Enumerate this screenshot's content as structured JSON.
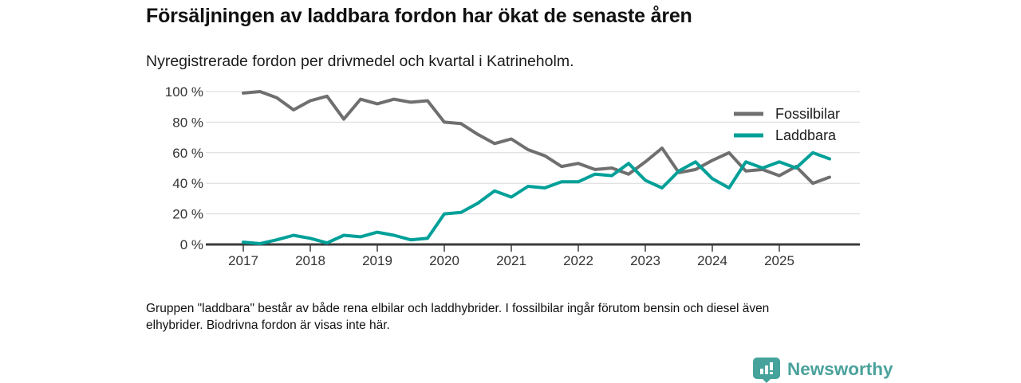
{
  "header": {
    "title": "Försäljningen av laddbara fordon har ökat de senaste åren",
    "subtitle": "Nyregistrerade fordon per drivmedel och kvartal i Katrineholm."
  },
  "chart_data": {
    "type": "line",
    "title": "Försäljningen av laddbara fordon har ökat de senaste åren",
    "subtitle": "Nyregistrerade fordon per drivmedel och kvartal i Katrineholm.",
    "x_unit": "quarter",
    "x": [
      "2017Q1",
      "2017Q2",
      "2017Q3",
      "2017Q4",
      "2018Q1",
      "2018Q2",
      "2018Q3",
      "2018Q4",
      "2019Q1",
      "2019Q2",
      "2019Q3",
      "2019Q4",
      "2020Q1",
      "2020Q2",
      "2020Q3",
      "2020Q4",
      "2021Q1",
      "2021Q2",
      "2021Q3",
      "2021Q4",
      "2022Q1",
      "2022Q2",
      "2022Q3",
      "2022Q4",
      "2023Q1",
      "2023Q2",
      "2023Q3",
      "2023Q4",
      "2024Q1",
      "2024Q2",
      "2024Q3",
      "2024Q4",
      "2025Q1",
      "2025Q2",
      "2025Q3",
      "2025Q4"
    ],
    "x_tick_labels": [
      "2017",
      "2018",
      "2019",
      "2020",
      "2021",
      "2022",
      "2023",
      "2024",
      "2025"
    ],
    "y_tick_labels": [
      "0 %",
      "20 %",
      "40 %",
      "60 %",
      "80 %",
      "100 %"
    ],
    "y_ticks": [
      0,
      20,
      40,
      60,
      80,
      100
    ],
    "ylim": [
      0,
      100
    ],
    "grid": "horizontal",
    "legend_position": "top-right",
    "series": [
      {
        "name": "Fossilbilar",
        "color": "#6f6f6f",
        "values": [
          99,
          100,
          96,
          88,
          94,
          97,
          82,
          95,
          92,
          95,
          93,
          94,
          80,
          79,
          72,
          66,
          69,
          62,
          58,
          51,
          53,
          49,
          50,
          46,
          54,
          63,
          47,
          49,
          55,
          60,
          48,
          49,
          45,
          51,
          40,
          44
        ]
      },
      {
        "name": "Laddbara",
        "color": "#00a099",
        "values": [
          1.5,
          0.5,
          3,
          6,
          4,
          1,
          6,
          5,
          8,
          6,
          3,
          4,
          20,
          21,
          27,
          35,
          31,
          38,
          37,
          41,
          41,
          46,
          45,
          53,
          42,
          37,
          48,
          54,
          43,
          37,
          54,
          50,
          54,
          50,
          60,
          56
        ]
      }
    ],
    "axis_color": "#3b3b3b",
    "gridline_color": "#d8d8d8",
    "tick_label_color": "#333333",
    "legend_text_color": "#1c1c1c"
  },
  "footer": {
    "note_lines": [
      "Gruppen \"laddbara\" består av både rena elbilar och laddhybrider. I fossilbilar ingår förutom bensin och diesel även",
      "elhybrider. Biodrivna fordon är visas inte här."
    ]
  },
  "branding": {
    "name": "Newsworthy",
    "color": "#4aa29b",
    "icon": "bar-chart-speech-bubble-icon"
  }
}
